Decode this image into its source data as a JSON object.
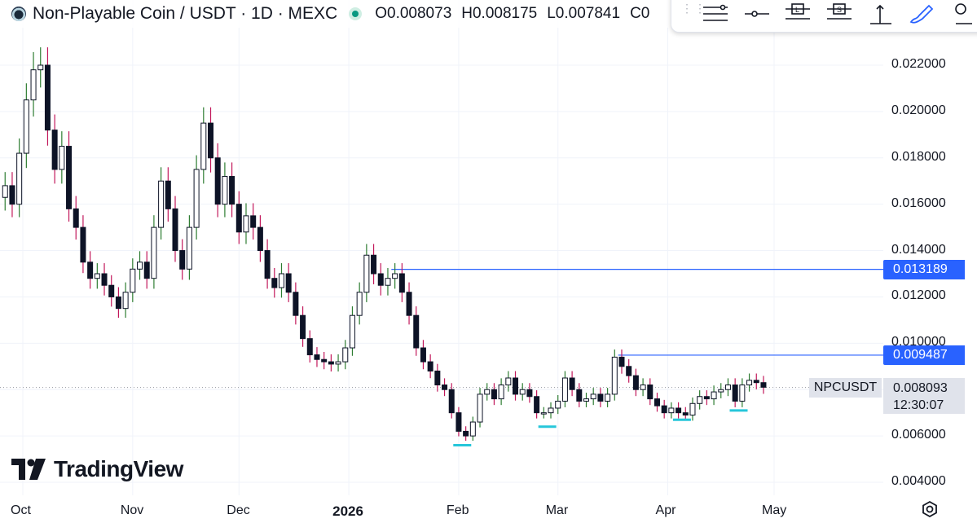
{
  "header": {
    "title": "Non-Playable Coin / USDT · 1D · MEXC",
    "open": "O0.008073",
    "high": "H0.008175",
    "low": "L0.007841",
    "change_partial": "C0"
  },
  "toolbar": {
    "icons": [
      "horizontal-lines-icon",
      "horizontal-ray-icon",
      "long-position-icon",
      "short-position-icon",
      "vertical-axis-icon",
      "brush-icon",
      "more-icon"
    ]
  },
  "colors": {
    "up": "#2e7d32",
    "down": "#c2185b",
    "body": "#0d1326",
    "hline": "#2962ff",
    "marker": "#26c6da",
    "grid": "#f0f3fa"
  },
  "chart_data": {
    "type": "candlestick",
    "title": "Non-Playable Coin / USDT · 1D · MEXC",
    "symbol": "NPCUSDT",
    "last_price": "0.008093",
    "countdown": "12:30:07",
    "y_axis": {
      "ticks": [
        "0.022000",
        "0.020000",
        "0.018000",
        "0.016000",
        "0.014000",
        "0.012000",
        "0.010000",
        "0.008000",
        "0.006000",
        "0.004000"
      ],
      "range": [
        0.0034,
        0.0245
      ]
    },
    "x_axis": {
      "labels": [
        "Oct",
        "Nov",
        "Dec",
        "2026",
        "Feb",
        "Mar",
        "Apr",
        "May"
      ],
      "bold_label": "2026"
    },
    "horizontal_lines": [
      {
        "price": 0.013189,
        "label": "0.013189",
        "start_date": "2026-01-13"
      },
      {
        "price": 0.009487,
        "label": "0.009487",
        "start_date": "2026-03-18"
      }
    ],
    "support_markers": [
      {
        "date": "2026-02-02",
        "price": 0.0056
      },
      {
        "date": "2026-02-26",
        "price": 0.0064
      },
      {
        "date": "2026-04-05",
        "price": 0.0067
      },
      {
        "date": "2026-04-21",
        "price": 0.0071
      }
    ],
    "series": [
      {
        "date": "2025-09-26",
        "close": 0.0168
      },
      {
        "date": "2025-09-28",
        "close": 0.016
      },
      {
        "date": "2025-09-30",
        "close": 0.0182
      },
      {
        "date": "2025-10-02",
        "close": 0.0205
      },
      {
        "date": "2025-10-04",
        "close": 0.0218
      },
      {
        "date": "2025-10-06",
        "close": 0.022
      },
      {
        "date": "2025-10-08",
        "close": 0.0192
      },
      {
        "date": "2025-10-10",
        "close": 0.0175
      },
      {
        "date": "2025-10-12",
        "close": 0.0185
      },
      {
        "date": "2025-10-14",
        "close": 0.0158
      },
      {
        "date": "2025-10-16",
        "close": 0.015
      },
      {
        "date": "2025-10-18",
        "close": 0.0135
      },
      {
        "date": "2025-10-20",
        "close": 0.0128
      },
      {
        "date": "2025-10-22",
        "close": 0.013
      },
      {
        "date": "2025-10-24",
        "close": 0.0125
      },
      {
        "date": "2025-10-26",
        "close": 0.012
      },
      {
        "date": "2025-10-28",
        "close": 0.0115
      },
      {
        "date": "2025-10-30",
        "close": 0.0122
      },
      {
        "date": "2025-11-01",
        "close": 0.0132
      },
      {
        "date": "2025-11-03",
        "close": 0.0135
      },
      {
        "date": "2025-11-05",
        "close": 0.0128
      },
      {
        "date": "2025-11-07",
        "close": 0.015
      },
      {
        "date": "2025-11-09",
        "close": 0.017
      },
      {
        "date": "2025-11-11",
        "close": 0.0158
      },
      {
        "date": "2025-11-13",
        "close": 0.014
      },
      {
        "date": "2025-11-15",
        "close": 0.0132
      },
      {
        "date": "2025-11-17",
        "close": 0.015
      },
      {
        "date": "2025-11-19",
        "close": 0.0175
      },
      {
        "date": "2025-11-21",
        "close": 0.0195
      },
      {
        "date": "2025-11-23",
        "close": 0.018
      },
      {
        "date": "2025-11-25",
        "close": 0.016
      },
      {
        "date": "2025-11-27",
        "close": 0.0172
      },
      {
        "date": "2025-11-29",
        "close": 0.016
      },
      {
        "date": "2025-12-01",
        "close": 0.0148
      },
      {
        "date": "2025-12-03",
        "close": 0.0155
      },
      {
        "date": "2025-12-05",
        "close": 0.015
      },
      {
        "date": "2025-12-07",
        "close": 0.014
      },
      {
        "date": "2025-12-09",
        "close": 0.0128
      },
      {
        "date": "2025-12-11",
        "close": 0.0124
      },
      {
        "date": "2025-12-13",
        "close": 0.013
      },
      {
        "date": "2025-12-15",
        "close": 0.0122
      },
      {
        "date": "2025-12-17",
        "close": 0.0112
      },
      {
        "date": "2025-12-19",
        "close": 0.0102
      },
      {
        "date": "2025-12-21",
        "close": 0.0095
      },
      {
        "date": "2025-12-23",
        "close": 0.0093
      },
      {
        "date": "2025-12-25",
        "close": 0.0092
      },
      {
        "date": "2025-12-27",
        "close": 0.0091
      },
      {
        "date": "2025-12-29",
        "close": 0.0092
      },
      {
        "date": "2025-12-31",
        "close": 0.0098
      },
      {
        "date": "2026-01-02",
        "close": 0.0112
      },
      {
        "date": "2026-01-04",
        "close": 0.0122
      },
      {
        "date": "2026-01-06",
        "close": 0.0138
      },
      {
        "date": "2026-01-08",
        "close": 0.013
      },
      {
        "date": "2026-01-10",
        "close": 0.0125
      },
      {
        "date": "2026-01-12",
        "close": 0.0128
      },
      {
        "date": "2026-01-14",
        "close": 0.013
      },
      {
        "date": "2026-01-16",
        "close": 0.0122
      },
      {
        "date": "2026-01-18",
        "close": 0.0112
      },
      {
        "date": "2026-01-20",
        "close": 0.0098
      },
      {
        "date": "2026-01-22",
        "close": 0.0092
      },
      {
        "date": "2026-01-24",
        "close": 0.0088
      },
      {
        "date": "2026-01-26",
        "close": 0.0082
      },
      {
        "date": "2026-01-28",
        "close": 0.008
      },
      {
        "date": "2026-01-30",
        "close": 0.007
      },
      {
        "date": "2026-02-01",
        "close": 0.0062
      },
      {
        "date": "2026-02-03",
        "close": 0.006
      },
      {
        "date": "2026-02-05",
        "close": 0.0066
      },
      {
        "date": "2026-02-07",
        "close": 0.0078
      },
      {
        "date": "2026-02-09",
        "close": 0.008
      },
      {
        "date": "2026-02-11",
        "close": 0.0076
      },
      {
        "date": "2026-02-13",
        "close": 0.0082
      },
      {
        "date": "2026-02-15",
        "close": 0.0085
      },
      {
        "date": "2026-02-17",
        "close": 0.0078
      },
      {
        "date": "2026-02-19",
        "close": 0.008
      },
      {
        "date": "2026-02-21",
        "close": 0.0077
      },
      {
        "date": "2026-02-23",
        "close": 0.007
      },
      {
        "date": "2026-02-25",
        "close": 0.007
      },
      {
        "date": "2026-02-27",
        "close": 0.0072
      },
      {
        "date": "2026-03-01",
        "close": 0.0075
      },
      {
        "date": "2026-03-03",
        "close": 0.0085
      },
      {
        "date": "2026-03-05",
        "close": 0.008
      },
      {
        "date": "2026-03-07",
        "close": 0.0075
      },
      {
        "date": "2026-03-09",
        "close": 0.0076
      },
      {
        "date": "2026-03-11",
        "close": 0.0078
      },
      {
        "date": "2026-03-13",
        "close": 0.0075
      },
      {
        "date": "2026-03-15",
        "close": 0.0078
      },
      {
        "date": "2026-03-17",
        "close": 0.0094
      },
      {
        "date": "2026-03-19",
        "close": 0.009
      },
      {
        "date": "2026-03-21",
        "close": 0.0086
      },
      {
        "date": "2026-03-23",
        "close": 0.008
      },
      {
        "date": "2026-03-25",
        "close": 0.0082
      },
      {
        "date": "2026-03-27",
        "close": 0.0076
      },
      {
        "date": "2026-03-29",
        "close": 0.0073
      },
      {
        "date": "2026-03-31",
        "close": 0.007
      },
      {
        "date": "2026-04-02",
        "close": 0.0072
      },
      {
        "date": "2026-04-04",
        "close": 0.007
      },
      {
        "date": "2026-04-06",
        "close": 0.0069
      },
      {
        "date": "2026-04-08",
        "close": 0.0074
      },
      {
        "date": "2026-04-10",
        "close": 0.0077
      },
      {
        "date": "2026-04-12",
        "close": 0.0076
      },
      {
        "date": "2026-04-14",
        "close": 0.0079
      },
      {
        "date": "2026-04-16",
        "close": 0.008
      },
      {
        "date": "2026-04-18",
        "close": 0.0082
      },
      {
        "date": "2026-04-20",
        "close": 0.0075
      },
      {
        "date": "2026-04-22",
        "close": 0.0082
      },
      {
        "date": "2026-04-24",
        "close": 0.0084
      },
      {
        "date": "2026-04-26",
        "close": 0.0083
      },
      {
        "date": "2026-04-28",
        "close": 0.0081
      }
    ],
    "grid": true
  },
  "branding": {
    "logo_text": "TradingView"
  }
}
